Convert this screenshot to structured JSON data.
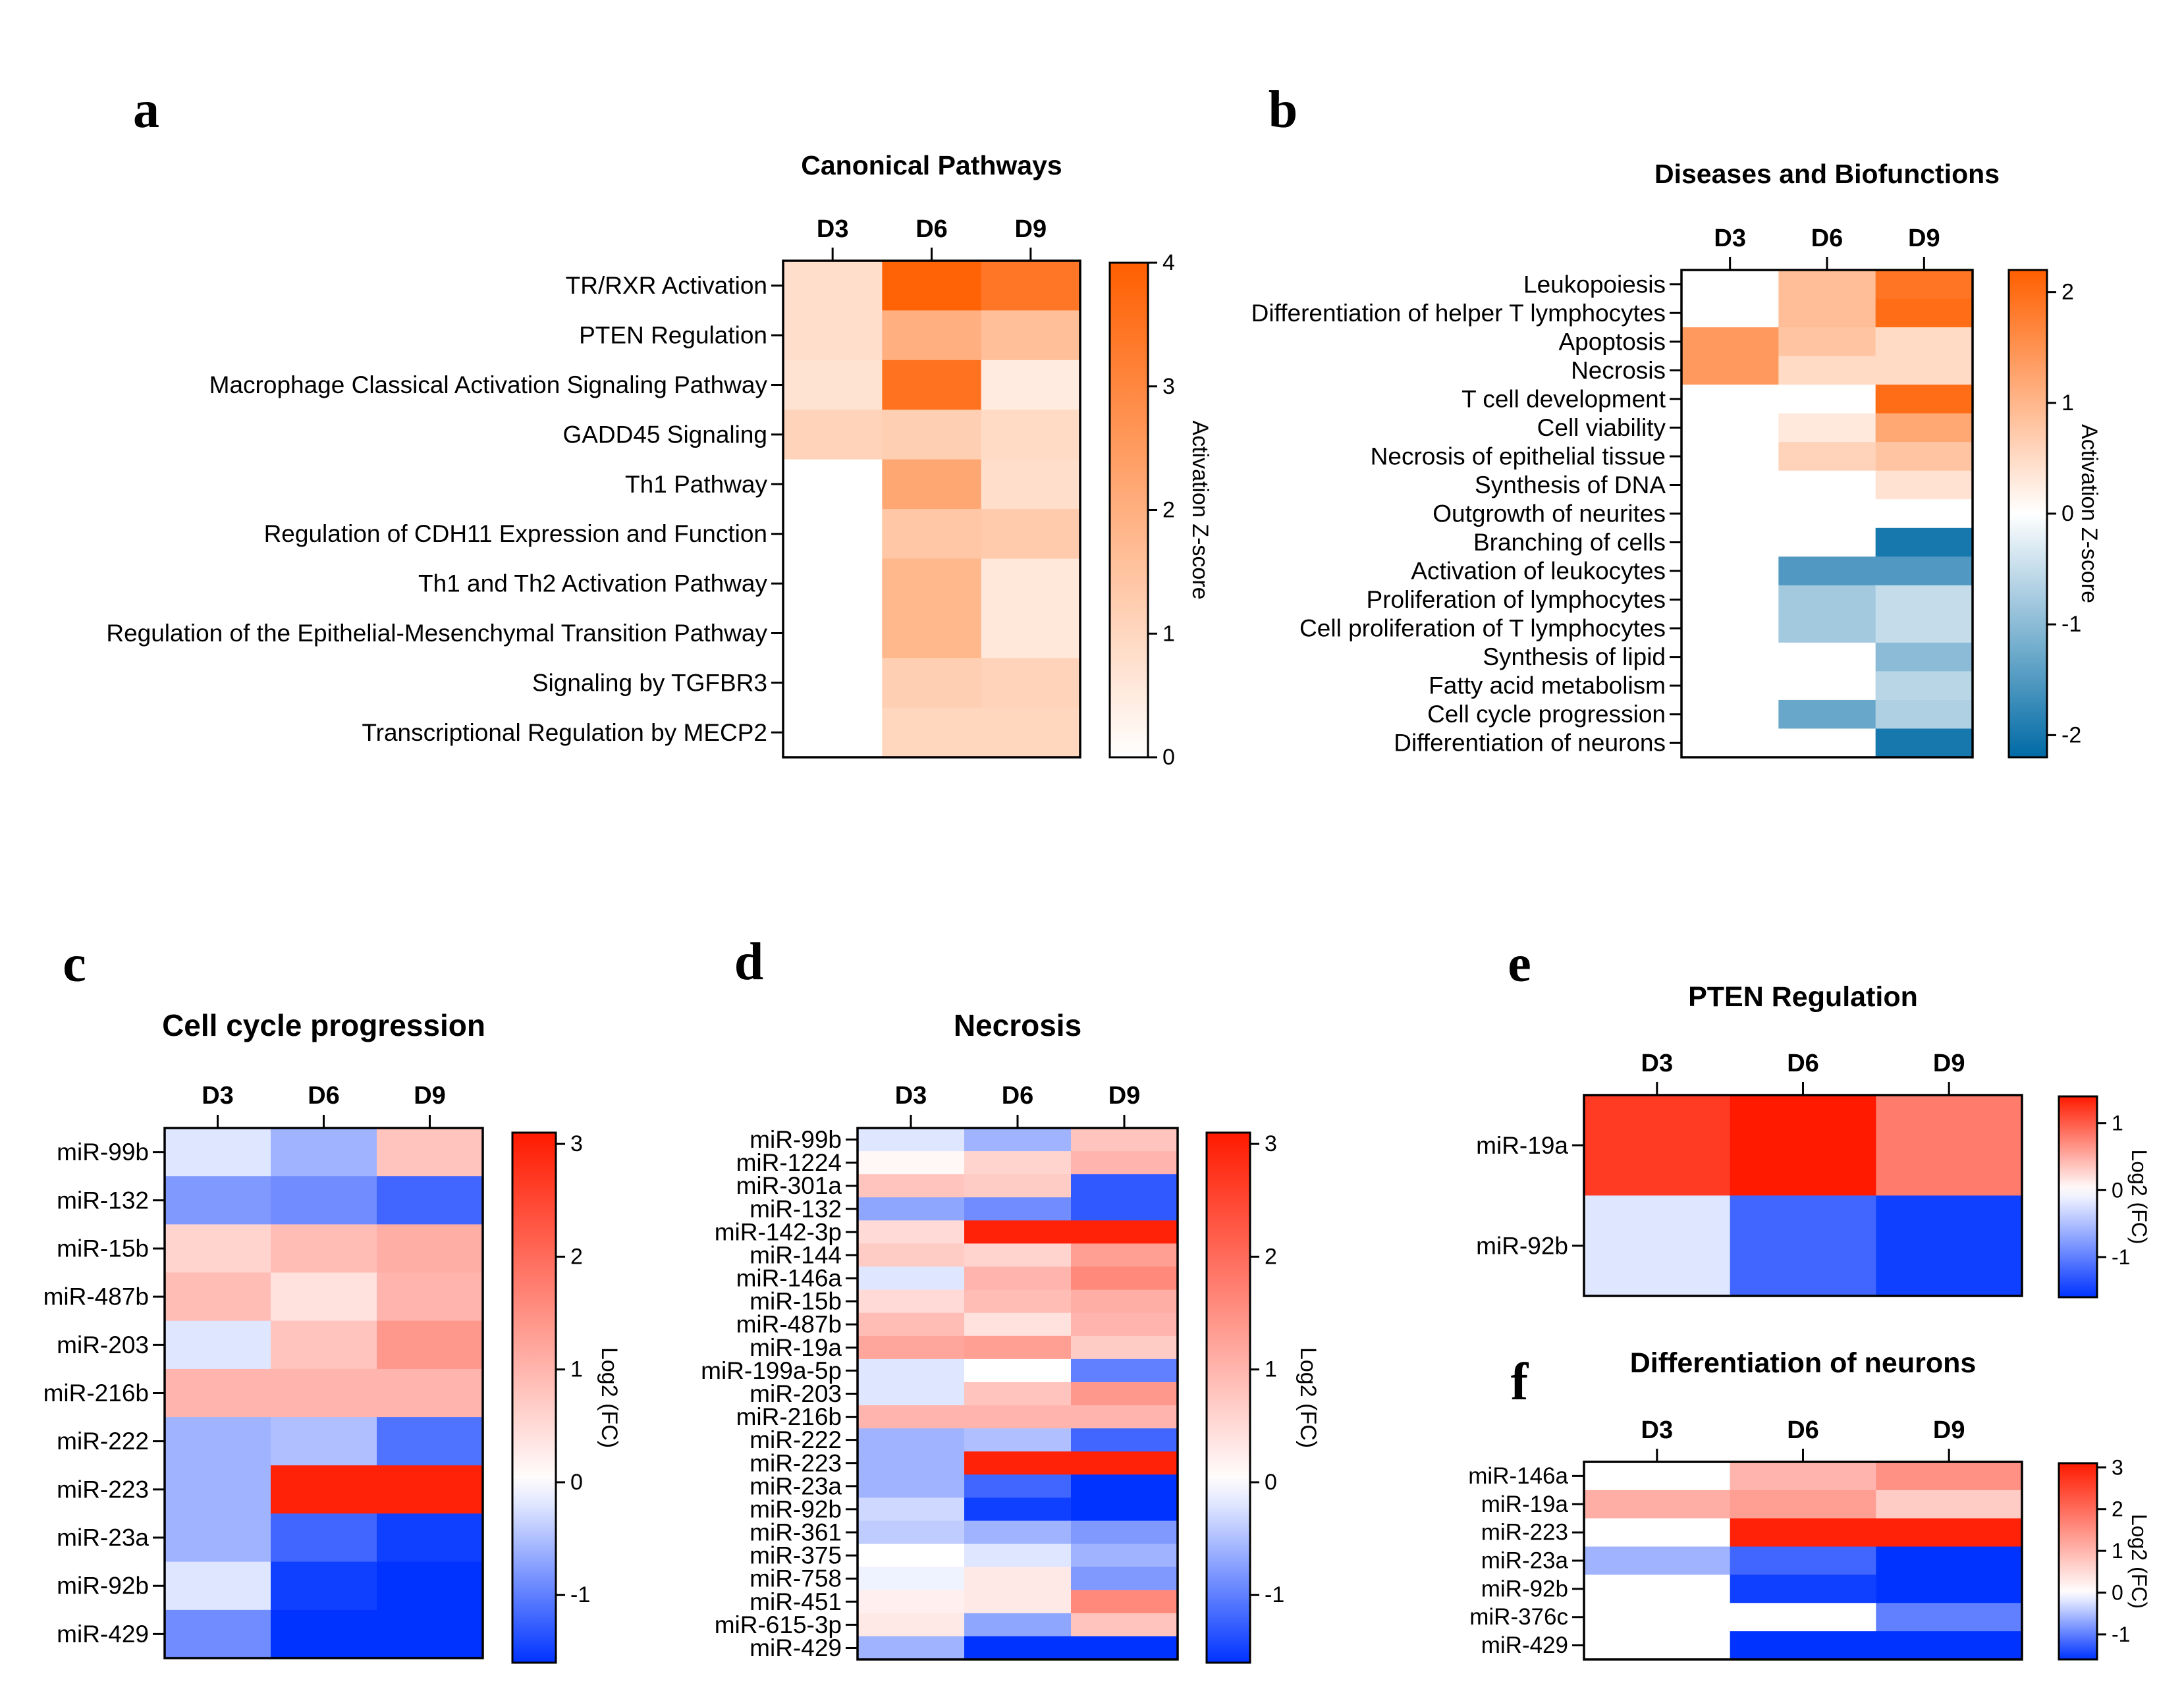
{
  "figure": {
    "panel_letters": [
      "a",
      "b",
      "c",
      "d",
      "e",
      "f"
    ]
  },
  "colors": {
    "orange_high": "#ff5f00",
    "white": "#ffffff",
    "blue_low": "#006aa5",
    "red_high": "#ff1a00",
    "blue_min": "#0033ff"
  },
  "chart_data": [
    {
      "id": "a",
      "type": "heatmap",
      "title": "Canonical Pathways",
      "columns": [
        "D3",
        "D6",
        "D9"
      ],
      "rows": [
        "TR/RXR Activation",
        "PTEN Regulation",
        "Macrophage Classical Activation Signaling Pathway",
        "GADD45 Signaling",
        "Th1 Pathway",
        "Regulation of CDH11 Expression and Function",
        "Th1 and Th2 Activation Pathway",
        "Regulation of the Epithelial-Mesenchymal Transition Pathway",
        "Signaling by TGFBR3",
        "Transcriptional Regulation by MECP2"
      ],
      "values": [
        [
          0.8,
          3.9,
          3.4
        ],
        [
          0.8,
          2.0,
          1.6
        ],
        [
          0.7,
          3.5,
          0.5
        ],
        [
          1.1,
          1.2,
          0.9
        ],
        [
          0,
          2.2,
          0.8
        ],
        [
          0,
          1.4,
          1.3
        ],
        [
          0,
          1.8,
          0.6
        ],
        [
          0,
          1.8,
          0.6
        ],
        [
          0,
          1.2,
          1.1
        ],
        [
          0,
          1.0,
          1.0
        ]
      ],
      "colorbar": {
        "label": "Activation Z-score",
        "ticks": [
          "0",
          "1",
          "2",
          "3",
          "4"
        ],
        "range": [
          0,
          4
        ],
        "scheme": "white-orange"
      }
    },
    {
      "id": "b",
      "type": "heatmap",
      "title": "Diseases and Biofunctions",
      "columns": [
        "D3",
        "D6",
        "D9"
      ],
      "rows": [
        "Leukopoiesis",
        "Differentiation of helper T lymphocytes",
        "Apoptosis",
        "Necrosis",
        "T cell development",
        "Cell viability",
        "Necrosis of epithelial tissue",
        "Synthesis of DNA",
        "Outgrowth of neurites",
        "Branching of cells",
        "Activation of leukocytes",
        "Proliferation of lymphocytes",
        "Cell proliferation of T lymphocytes",
        "Synthesis of lipid",
        "Fatty acid metabolism",
        "Cell cycle progression",
        "Differentiation of neurons"
      ],
      "values": [
        [
          0,
          0.9,
          1.9
        ],
        [
          0,
          0.9,
          2.0
        ],
        [
          1.4,
          0.8,
          0.5
        ],
        [
          1.4,
          0.5,
          0.5
        ],
        [
          0,
          0,
          2.0
        ],
        [
          0,
          0.3,
          1.2
        ],
        [
          0,
          0.6,
          0.8
        ],
        [
          0,
          0,
          0.4
        ],
        [
          0,
          0,
          0
        ],
        [
          0,
          0,
          -2.0
        ],
        [
          0,
          -1.5,
          -1.5
        ],
        [
          0,
          -0.8,
          -0.5
        ],
        [
          0,
          -0.8,
          -0.5
        ],
        [
          0,
          0,
          -1.0
        ],
        [
          0,
          0,
          -0.6
        ],
        [
          0,
          -1.3,
          -0.7
        ],
        [
          0,
          0,
          -2.0
        ]
      ],
      "colorbar": {
        "label": "Activation Z-score",
        "ticks": [
          "2",
          "1",
          "0",
          "-1",
          "-2"
        ],
        "range": [
          -2.2,
          2.2
        ],
        "scheme": "blue-white-orange"
      }
    },
    {
      "id": "c",
      "type": "heatmap",
      "title": "Cell cycle progression",
      "columns": [
        "D3",
        "D6",
        "D9"
      ],
      "rows": [
        "miR-99b",
        "miR-132",
        "miR-15b",
        "miR-487b",
        "miR-203",
        "miR-216b",
        "miR-222",
        "miR-223",
        "miR-23a",
        "miR-92b",
        "miR-429"
      ],
      "values": [
        [
          -0.2,
          -0.6,
          0.8
        ],
        [
          -0.8,
          -0.9,
          -1.2
        ],
        [
          0.6,
          0.9,
          1.1
        ],
        [
          0.9,
          0.4,
          1.0
        ],
        [
          -0.2,
          0.8,
          1.4
        ],
        [
          1.0,
          1.0,
          1.0
        ],
        [
          -0.6,
          -0.5,
          -1.1
        ],
        [
          -0.6,
          3.0,
          3.0
        ],
        [
          -0.6,
          -1.2,
          -1.5
        ],
        [
          -0.2,
          -1.5,
          -1.8
        ],
        [
          -0.9,
          -1.8,
          -1.8
        ]
      ],
      "colorbar": {
        "label": "Log2 (FC)",
        "ticks": [
          "3",
          "2",
          "1",
          "0",
          "-1"
        ],
        "range": [
          -1.6,
          3.1
        ],
        "scheme": "blue-white-red"
      }
    },
    {
      "id": "d",
      "type": "heatmap",
      "title": "Necrosis",
      "columns": [
        "D3",
        "D6",
        "D9"
      ],
      "rows": [
        "miR-99b",
        "miR-1224",
        "miR-301a",
        "miR-132",
        "miR-142-3p",
        "miR-144",
        "miR-146a",
        "miR-15b",
        "miR-487b",
        "miR-19a",
        "miR-199a-5p",
        "miR-203",
        "miR-216b",
        "miR-222",
        "miR-223",
        "miR-23a",
        "miR-92b",
        "miR-361",
        "miR-375",
        "miR-758",
        "miR-451",
        "miR-615-3p",
        "miR-429"
      ],
      "values": [
        [
          -0.2,
          -0.6,
          0.8
        ],
        [
          0.1,
          0.6,
          1.0
        ],
        [
          0.8,
          0.7,
          -1.3
        ],
        [
          -0.7,
          -0.9,
          -1.3
        ],
        [
          0.5,
          3.0,
          3.0
        ],
        [
          0.7,
          0.6,
          1.3
        ],
        [
          -0.2,
          1.0,
          1.6
        ],
        [
          0.5,
          0.9,
          1.1
        ],
        [
          0.9,
          0.4,
          1.0
        ],
        [
          1.2,
          1.3,
          0.7
        ],
        [
          -0.2,
          0,
          -1.0
        ],
        [
          -0.2,
          0.8,
          1.4
        ],
        [
          1.0,
          1.0,
          1.0
        ],
        [
          -0.6,
          -0.5,
          -1.2
        ],
        [
          -0.6,
          3.0,
          3.0
        ],
        [
          -0.6,
          -1.2,
          -1.6
        ],
        [
          -0.3,
          -1.5,
          -1.8
        ],
        [
          -0.4,
          -0.6,
          -0.8
        ],
        [
          0,
          -0.2,
          -0.6
        ],
        [
          -0.1,
          0.3,
          -0.8
        ],
        [
          0.2,
          0.3,
          1.6
        ],
        [
          0.3,
          -0.7,
          0.8
        ],
        [
          -0.6,
          -1.8,
          -1.8
        ]
      ],
      "colorbar": {
        "label": "Log2 (FC)",
        "ticks": [
          "3",
          "2",
          "1",
          "0",
          "-1"
        ],
        "range": [
          -1.6,
          3.1
        ],
        "scheme": "blue-white-red"
      }
    },
    {
      "id": "e",
      "type": "heatmap",
      "title": "PTEN Regulation",
      "columns": [
        "D3",
        "D6",
        "D9"
      ],
      "rows": [
        "miR-19a",
        "miR-92b"
      ],
      "values": [
        [
          1.2,
          1.4,
          0.8
        ],
        [
          -0.2,
          -1.2,
          -1.5
        ]
      ],
      "colorbar": {
        "label": "Log2 (FC)",
        "ticks": [
          "1",
          "0",
          "-1"
        ],
        "range": [
          -1.6,
          1.4
        ],
        "scheme": "blue-white-red"
      }
    },
    {
      "id": "f",
      "type": "heatmap",
      "title": "Differentiation of neurons",
      "columns": [
        "D3",
        "D6",
        "D9"
      ],
      "rows": [
        "miR-146a",
        "miR-19a",
        "miR-223",
        "miR-23a",
        "miR-92b",
        "miR-376c",
        "miR-429"
      ],
      "values": [
        [
          0,
          1.0,
          1.5
        ],
        [
          1.1,
          1.3,
          0.7
        ],
        [
          0,
          3.0,
          3.0
        ],
        [
          -0.6,
          -1.2,
          -1.6
        ],
        [
          0,
          -1.5,
          -1.8
        ],
        [
          0,
          0,
          -1.0
        ],
        [
          0,
          -1.8,
          -1.8
        ]
      ],
      "colorbar": {
        "label": "Log2 (FC)",
        "ticks": [
          "3",
          "2",
          "1",
          "0",
          "-1"
        ],
        "range": [
          -1.6,
          3.1
        ],
        "scheme": "blue-white-red"
      }
    }
  ]
}
